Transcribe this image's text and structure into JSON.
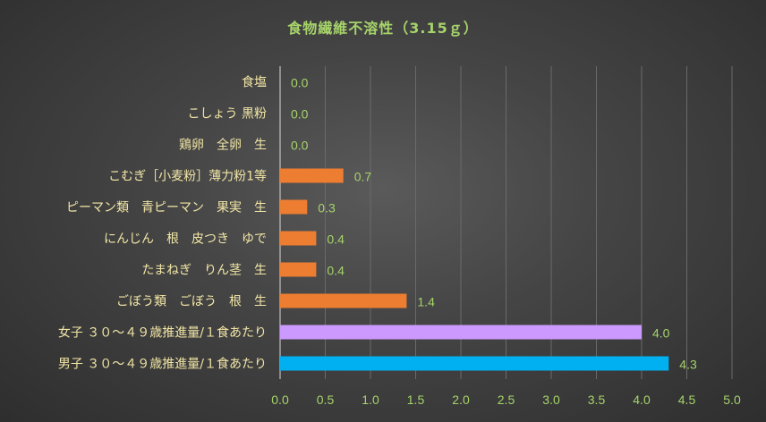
{
  "chart_data": {
    "type": "bar",
    "orientation": "horizontal",
    "title": "食物繊維不溶性（3.15ｇ）",
    "categories": [
      "食塩",
      "こしょう 黒粉",
      "鶏卵　全卵　生",
      "こむぎ［小麦粉］薄力粉1等",
      "ピーマン類　青ピーマン　果実　生",
      "にんじん　根　皮つき　ゆで",
      "たまねぎ　りん茎　生",
      "ごぼう類　ごぼう　根　生",
      "女子 ３０～４９歳推進量/１食あたり",
      "男子 ３０～４９歳推進量/１食あたり"
    ],
    "values": [
      0.0,
      0.0,
      0.0,
      0.7,
      0.3,
      0.4,
      0.4,
      1.4,
      4.0,
      4.3
    ],
    "value_labels": [
      "0.0",
      "0.0",
      "0.0",
      "0.7",
      "0.3",
      "0.4",
      "0.4",
      "1.4",
      "4.0",
      "4.3"
    ],
    "bar_colors": [
      "#ed7d31",
      "#ed7d31",
      "#ed7d31",
      "#ed7d31",
      "#ed7d31",
      "#ed7d31",
      "#ed7d31",
      "#ed7d31",
      "#cc99ff",
      "#00b0f0"
    ],
    "xlim": [
      0,
      5
    ],
    "xticks": [
      "0.0",
      "0.5",
      "1.0",
      "1.5",
      "2.0",
      "2.5",
      "3.0",
      "3.5",
      "4.0",
      "4.5",
      "5.0"
    ],
    "xlabel": "",
    "ylabel": "",
    "grid": "vertical",
    "legend": "none",
    "colors": {
      "title": "#a6d36a",
      "category_label": "#f2e6a6",
      "tick_label": "#a6d36a",
      "data_label": "#a6d36a",
      "gridline": "#6a6a6a",
      "axis": "#d9d9d9"
    }
  }
}
